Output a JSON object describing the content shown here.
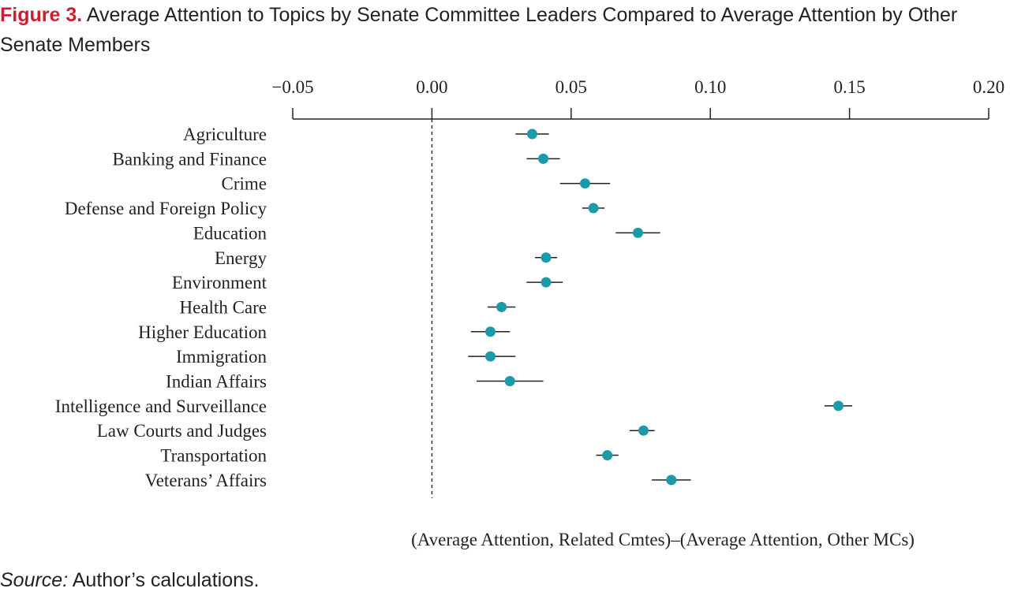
{
  "header": {
    "figure_label": "Figure 3.",
    "title_text": "Average Attention to Topics by Senate Committee Leaders Compared to Average Attention by Other Senate Members"
  },
  "footer": {
    "source_label": "Source:",
    "source_text": "Author’s calculations."
  },
  "colors": {
    "point": "#1b9aaa",
    "text": "#222222",
    "figure_label": "#c8202f"
  },
  "chart_data": {
    "type": "scatter",
    "subtype": "dot-and-whisker",
    "xlabel": "(Average Attention, Related Cmtes)–(Average Attention, Other MCs)",
    "xlim": [
      -0.05,
      0.2
    ],
    "x_ticks": [
      -0.05,
      0.0,
      0.05,
      0.1,
      0.15,
      0.2
    ],
    "x_tick_labels": [
      "−0.05",
      "0.00",
      "0.05",
      "0.10",
      "0.15",
      "0.20"
    ],
    "x_axis_position": "top",
    "reference_line": 0.0,
    "categories": [
      "Agriculture",
      "Banking and Finance",
      "Crime",
      "Defense and Foreign Policy",
      "Education",
      "Energy",
      "Environment",
      "Health Care",
      "Higher Education",
      "Immigration",
      "Indian Affairs",
      "Intelligence and Surveillance",
      "Law Courts and Judges",
      "Transportation",
      "Veterans’ Affairs"
    ],
    "values": [
      0.036,
      0.04,
      0.055,
      0.058,
      0.074,
      0.041,
      0.041,
      0.025,
      0.021,
      0.021,
      0.028,
      0.146,
      0.076,
      0.063,
      0.086
    ],
    "ci_low": [
      0.03,
      0.034,
      0.046,
      0.054,
      0.066,
      0.037,
      0.034,
      0.02,
      0.014,
      0.013,
      0.016,
      0.141,
      0.071,
      0.059,
      0.079
    ],
    "ci_high": [
      0.042,
      0.046,
      0.064,
      0.062,
      0.082,
      0.045,
      0.047,
      0.03,
      0.028,
      0.03,
      0.04,
      0.151,
      0.08,
      0.067,
      0.093
    ]
  }
}
